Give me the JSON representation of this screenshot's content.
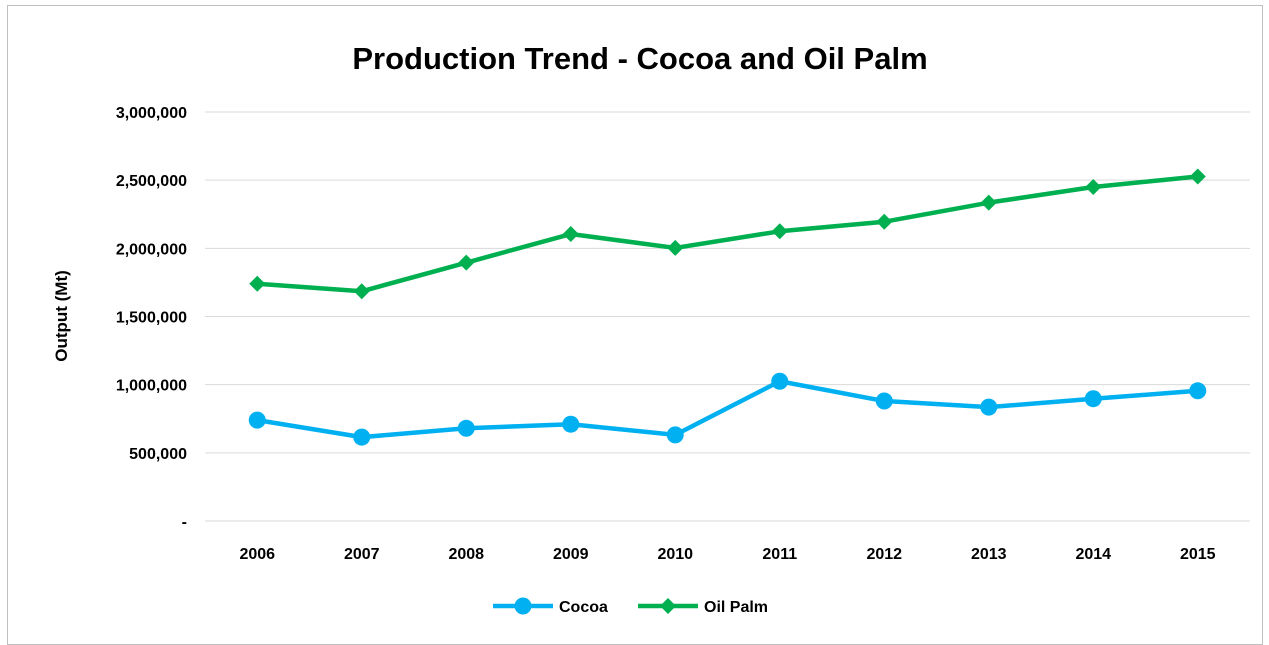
{
  "chart_data": {
    "type": "line",
    "title": "Production Trend - Cocoa and Oil Palm",
    "xlabel": "",
    "ylabel": "Output (Mt)",
    "categories": [
      "2006",
      "2007",
      "2008",
      "2009",
      "2010",
      "2011",
      "2012",
      "2013",
      "2014",
      "2015"
    ],
    "ylim": [
      0,
      3000000
    ],
    "yticks": [
      0,
      500000,
      1000000,
      1500000,
      2000000,
      2500000,
      3000000
    ],
    "ytick_labels": [
      "-",
      "500,000",
      "1,000,000",
      "1,500,000",
      "2,000,000",
      "2,500,000",
      "3,000,000"
    ],
    "grid": true,
    "legend_position": "bottom",
    "series": [
      {
        "name": "Cocoa",
        "color": "#00b0f0",
        "marker": "circle",
        "values": [
          740000,
          615000,
          680000,
          710000,
          632000,
          1025000,
          880000,
          835000,
          897000,
          955000
        ]
      },
      {
        "name": "Oil Palm",
        "color": "#00b050",
        "marker": "diamond",
        "values": [
          1740000,
          1685000,
          1895000,
          2105000,
          2003000,
          2125000,
          2195000,
          2335000,
          2450000,
          2527000
        ]
      }
    ]
  }
}
